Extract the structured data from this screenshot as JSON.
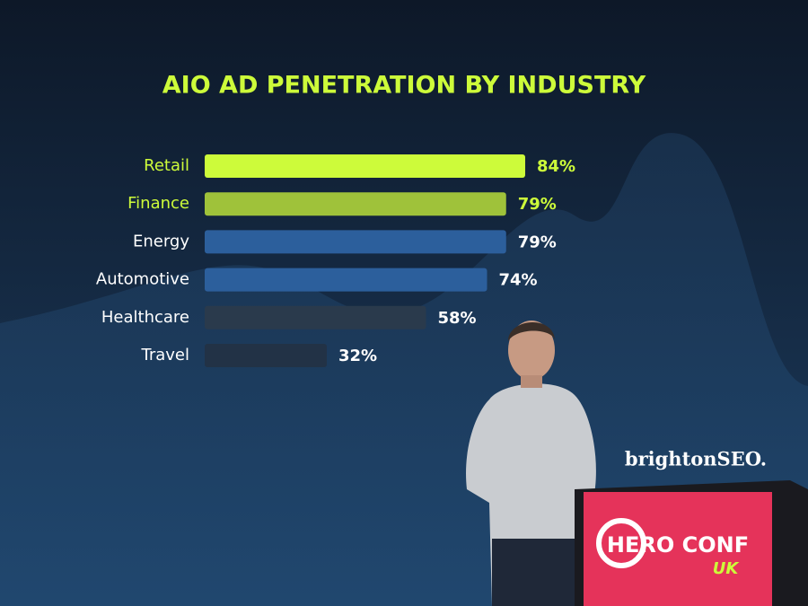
{
  "chart_data": {
    "type": "bar",
    "orientation": "horizontal",
    "title": "AIO AD PENETRATION BY INDUSTRY",
    "categories": [
      "Retail",
      "Finance",
      "Energy",
      "Automotive",
      "Healthcare",
      "Travel"
    ],
    "values": [
      84,
      79,
      79,
      74,
      58,
      32
    ],
    "value_labels": [
      "84%",
      "79%",
      "79%",
      "74%",
      "58%",
      "32%"
    ],
    "colors": [
      "#cdfb3a",
      "#9fc23a",
      "#2c5f9c",
      "#2c5f9c",
      "#2a3a4c",
      "#223246"
    ],
    "label_colors": [
      "#cdfb3a",
      "#cdfb3a",
      "#ffffff",
      "#ffffff",
      "#ffffff",
      "#ffffff"
    ]
  },
  "brand": "brightonSEO.",
  "podium": {
    "title": "HERO CONF",
    "subtitle": "UK"
  }
}
